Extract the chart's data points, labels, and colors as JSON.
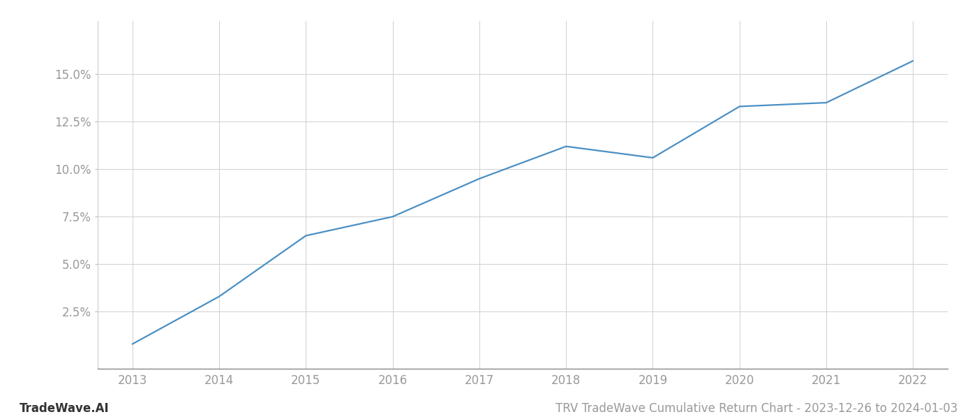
{
  "x_years": [
    2013,
    2014,
    2015,
    2016,
    2017,
    2018,
    2019,
    2020,
    2021,
    2022
  ],
  "y_values": [
    0.008,
    0.033,
    0.065,
    0.075,
    0.095,
    0.112,
    0.106,
    0.133,
    0.135,
    0.157
  ],
  "line_color": "#4a8fc4",
  "line_width": 1.6,
  "background_color": "#ffffff",
  "grid_color": "#d0d0d0",
  "title": "TRV TradeWave Cumulative Return Chart - 2023-12-26 to 2024-01-03",
  "watermark": "TradeWave.AI",
  "xlim": [
    2012.6,
    2022.4
  ],
  "ylim": [
    -0.005,
    0.178
  ],
  "yticks": [
    0.025,
    0.05,
    0.075,
    0.1,
    0.125,
    0.15
  ],
  "ytick_labels": [
    "2.5%",
    "5.0%",
    "7.5%",
    "10.0%",
    "12.5%",
    "15.0%"
  ],
  "xticks": [
    2013,
    2014,
    2015,
    2016,
    2017,
    2018,
    2019,
    2020,
    2021,
    2022
  ],
  "tick_color": "#999999",
  "watermark_color": "#333333",
  "title_color": "#999999",
  "tick_fontsize": 12,
  "title_fontsize": 12,
  "watermark_fontsize": 12
}
